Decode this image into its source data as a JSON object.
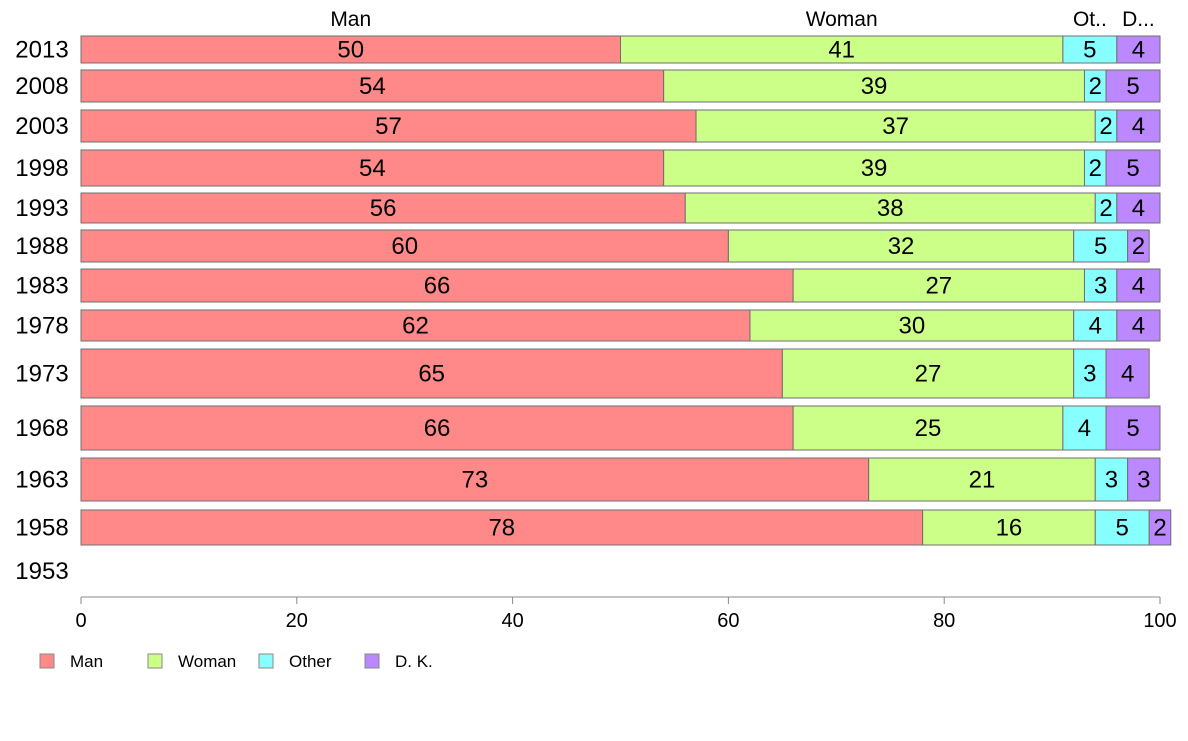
{
  "chart_data": {
    "type": "bar",
    "orientation": "horizontal",
    "stacked": true,
    "categories": [
      "2013",
      "2008",
      "2003",
      "1998",
      "1993",
      "1988",
      "1983",
      "1978",
      "1973",
      "1968",
      "1963",
      "1958",
      "1953"
    ],
    "series": [
      {
        "name": "Man",
        "color": "#FF8888",
        "values": [
          50,
          54,
          57,
          54,
          56,
          60,
          66,
          62,
          65,
          66,
          73,
          78,
          null
        ]
      },
      {
        "name": "Woman",
        "color": "#CCFF88",
        "values": [
          41,
          39,
          37,
          39,
          38,
          32,
          27,
          30,
          27,
          25,
          21,
          16,
          null
        ]
      },
      {
        "name": "Other",
        "color": "#88FFFF",
        "values": [
          5,
          2,
          2,
          2,
          2,
          5,
          3,
          4,
          3,
          4,
          3,
          5,
          null
        ]
      },
      {
        "name": "D. K.",
        "color": "#BB88FF",
        "values": [
          4,
          5,
          4,
          5,
          4,
          2,
          4,
          4,
          4,
          5,
          3,
          2,
          null
        ]
      }
    ],
    "column_headers": [
      "Man",
      "Woman",
      "Ot..",
      "D..."
    ],
    "xlim": [
      0,
      100
    ],
    "xticks": [
      0,
      20,
      40,
      60,
      80,
      100
    ],
    "title": "",
    "xlabel": "",
    "ylabel": "",
    "grid": false,
    "legend_position": "bottom-left"
  }
}
